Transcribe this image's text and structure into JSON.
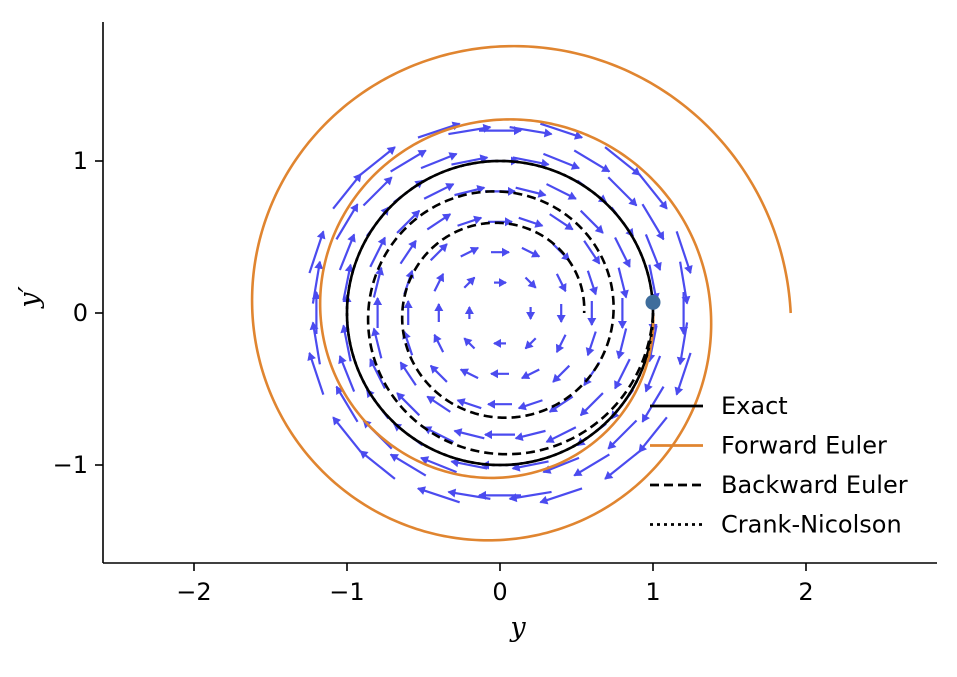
{
  "chart_data": {
    "type": "line",
    "xlabel": "y",
    "ylabel": "y′",
    "xlim": [
      -2.6,
      2.85
    ],
    "ylim": [
      -1.65,
      1.9
    ],
    "xticks": [
      -2,
      -1,
      0,
      1,
      2
    ],
    "xtick_labels": [
      "−2",
      "−1",
      "0",
      "1",
      "2"
    ],
    "yticks": [
      -1,
      0,
      1
    ],
    "ytick_labels": [
      "−1",
      "0",
      "1"
    ],
    "legend_placement": "lower-right",
    "initial_point": {
      "x": 1.0,
      "y": 0.07,
      "color": "#3e6d9c"
    },
    "quiver": {
      "color": "#4b4bef",
      "x_range": [
        -1.2,
        1.2
      ],
      "y_range": [
        -1.2,
        1.2
      ],
      "grid": 13
    },
    "series": [
      {
        "name": "Exact",
        "color": "#000000",
        "dash": "solid",
        "kind": "circle",
        "radius": 1.0
      },
      {
        "name": "Forward Euler",
        "color": "#e08530",
        "dash": "solid",
        "kind": "spiral",
        "r_start": 1.0,
        "r_end": 1.9,
        "turns": 2.0
      },
      {
        "name": "Backward Euler",
        "color": "#000000",
        "dash": "dashed",
        "kind": "spiral",
        "r_start": 1.0,
        "r_end": 0.55,
        "turns": 2.0
      },
      {
        "name": "Crank-Nicolson",
        "color": "#000000",
        "dash": "dotted",
        "kind": "circle",
        "radius": 1.0
      }
    ]
  }
}
